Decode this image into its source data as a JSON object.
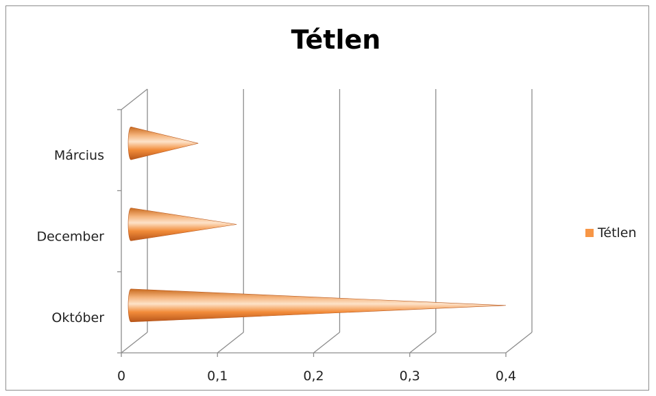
{
  "chart_data": {
    "type": "bar",
    "title": "Tétlen",
    "categories": [
      "Március",
      "December",
      "Október"
    ],
    "series": [
      {
        "name": "Tétlen",
        "values": [
          0.07,
          0.11,
          0.39
        ]
      }
    ],
    "x_ticks": [
      "0",
      "0,1",
      "0,2",
      "0,3",
      "0,4"
    ],
    "xlim": [
      0,
      0.4
    ],
    "grid": true,
    "legend": "right",
    "colors": {
      "series": "#f79646",
      "dark": "#c0560f",
      "light": "#fde2c8"
    }
  }
}
